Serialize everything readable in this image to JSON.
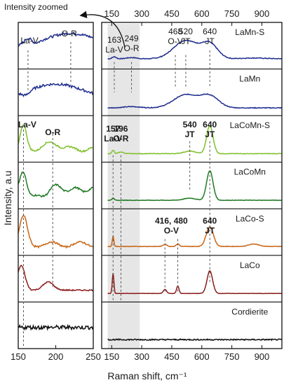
{
  "chart_data": {
    "type": "line",
    "ylabel": "Intensity, a.u",
    "xlabel": "Raman shift, cm⁻¹",
    "zoom_label": "Intensity zoomed",
    "left_panel": {
      "xlim": [
        150,
        250
      ],
      "xticks": [
        "150",
        "200",
        "250"
      ]
    },
    "right_panel": {
      "xlim": [
        100,
        1000
      ],
      "xticks_top": [
        "150",
        "300",
        "450",
        "600",
        "750",
        "900"
      ],
      "xticks_bottom": [
        "150",
        "300",
        "450",
        "600",
        "750",
        "900"
      ],
      "shaded_range": [
        130,
        290
      ]
    },
    "series": [
      {
        "name": "LaMn-S",
        "color": "#1f2d8f"
      },
      {
        "name": "LaMn",
        "color": "#1f2d8f"
      },
      {
        "name": "LaCoMn-S",
        "color": "#7fbf2a"
      },
      {
        "name": "LaCoMn",
        "color": "#1f7a24"
      },
      {
        "name": "LaCo-S",
        "color": "#c86414"
      },
      {
        "name": "LaCo",
        "color": "#8b1a1a"
      },
      {
        "name": "Cordierite",
        "color": "#111111"
      }
    ],
    "left_annotations": [
      {
        "text": "La-V",
        "panel": 0,
        "bold": false
      },
      {
        "text": "O-R",
        "panel": 0,
        "bold": false
      },
      {
        "text": "La-V",
        "panel": 2,
        "bold": true
      },
      {
        "text": "O-R",
        "panel": 2,
        "bold": true
      }
    ],
    "right_annotations": [
      {
        "panel": 0,
        "lines": [
          "163",
          "La-V"
        ],
        "bold": false
      },
      {
        "panel": 0,
        "lines": [
          "249",
          "O-R"
        ],
        "bold": false
      },
      {
        "panel": 0,
        "lines": [
          "468",
          "O-V"
        ],
        "bold": false
      },
      {
        "panel": 0,
        "lines": [
          "520",
          "JT"
        ],
        "bold": false
      },
      {
        "panel": 0,
        "lines": [
          "640",
          "JT"
        ],
        "bold": false
      },
      {
        "panel": 2,
        "lines": [
          "157",
          "La-V"
        ],
        "bold": true
      },
      {
        "panel": 2,
        "lines": [
          "196",
          "O-R"
        ],
        "bold": true
      },
      {
        "panel": 2,
        "lines": [
          "540",
          "JT"
        ],
        "bold": true
      },
      {
        "panel": 2,
        "lines": [
          "640",
          "JT"
        ],
        "bold": true
      },
      {
        "panel": 4,
        "lines": [
          "416, 480",
          "O-V"
        ],
        "bold": true
      },
      {
        "panel": 4,
        "lines": [
          "640",
          "JT"
        ],
        "bold": true
      }
    ]
  }
}
